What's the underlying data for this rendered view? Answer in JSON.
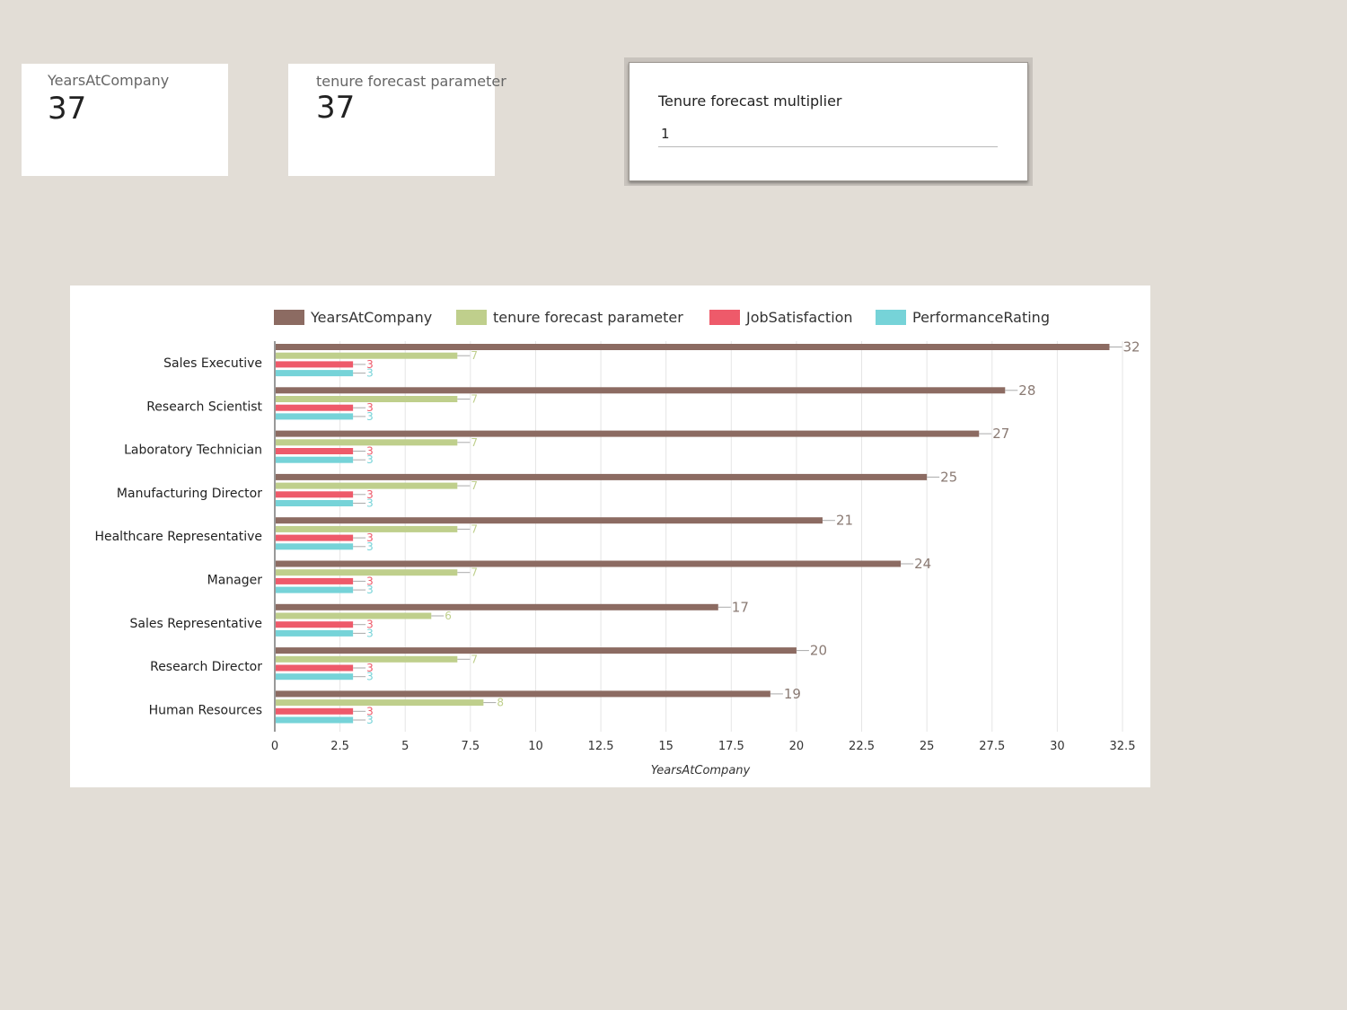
{
  "kpis": [
    {
      "label": "YearsAtCompany",
      "value": "37"
    },
    {
      "label": "tenure forecast parameter",
      "value": "37"
    }
  ],
  "parameter": {
    "label": "Tenure forecast multiplier",
    "value": "1"
  },
  "chart_data": {
    "type": "bar",
    "orientation": "horizontal",
    "categories": [
      "Sales Executive",
      "Research Scientist",
      "Laboratory Technician",
      "Manufacturing Director",
      "Healthcare Representative",
      "Manager",
      "Sales Representative",
      "Research Director",
      "Human Resources"
    ],
    "series": [
      {
        "name": "YearsAtCompany",
        "color": "#8c6b62",
        "values": [
          32,
          28,
          27,
          25,
          21,
          24,
          17,
          20,
          19
        ]
      },
      {
        "name": "tenure forecast parameter",
        "color": "#bfcf8c",
        "values": [
          7,
          7,
          7,
          7,
          7,
          7,
          6,
          7,
          8
        ]
      },
      {
        "name": "JobSatisfaction",
        "color": "#ee5a6a",
        "values": [
          3,
          3,
          3,
          3,
          3,
          3,
          3,
          3,
          3
        ]
      },
      {
        "name": "PerformanceRating",
        "color": "#76d3d8",
        "values": [
          3,
          3,
          3,
          3,
          3,
          3,
          3,
          3,
          3
        ]
      }
    ],
    "xlabel": "YearsAtCompany",
    "xlim": [
      0,
      32.5
    ],
    "xticks": [
      "0",
      "2.5",
      "5",
      "7.5",
      "10",
      "12.5",
      "15",
      "17.5",
      "20",
      "22.5",
      "25",
      "27.5",
      "30",
      "32.5"
    ],
    "grid": true,
    "legend": "top",
    "data_labels": true
  }
}
